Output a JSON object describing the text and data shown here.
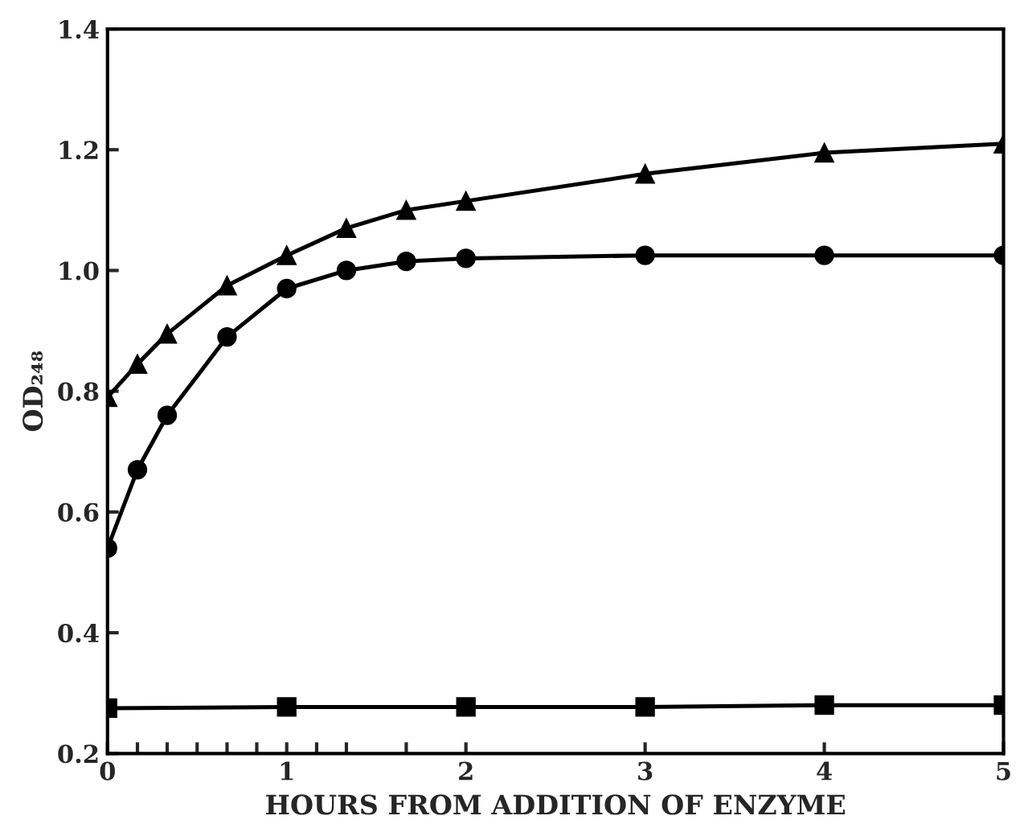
{
  "chart_data": {
    "type": "line",
    "xlabel": "HOURS FROM ADDITION OF ENZYME",
    "ylabel": "OD₂₄₈",
    "series": [
      {
        "color": "#000000",
        "marker": "triangle",
        "x": [
          0,
          0.167,
          0.333,
          0.667,
          1,
          1.333,
          1.667,
          2,
          3,
          4,
          5
        ],
        "values": [
          0.79,
          0.845,
          0.895,
          0.975,
          1.025,
          1.07,
          1.1,
          1.115,
          1.16,
          1.195,
          1.21
        ]
      },
      {
        "color": "#000000",
        "marker": "circle",
        "x": [
          0,
          0.167,
          0.333,
          0.667,
          1,
          1.333,
          1.667,
          2,
          3,
          4,
          5
        ],
        "values": [
          0.54,
          0.67,
          0.76,
          0.89,
          0.97,
          1.0,
          1.015,
          1.02,
          1.025,
          1.025,
          1.025
        ]
      },
      {
        "color": "#000000",
        "marker": "square",
        "x": [
          0,
          1,
          2,
          3,
          4,
          5
        ],
        "values": [
          0.275,
          0.277,
          0.277,
          0.277,
          0.28,
          0.28
        ]
      }
    ],
    "xlim": [
      0,
      5
    ],
    "ylim": [
      0.2,
      1.4
    ],
    "xticks": [
      0,
      {
        "value": 0.167,
        "label": null
      },
      {
        "value": 0.333,
        "label": null
      },
      {
        "value": 0.5,
        "label": null
      },
      {
        "value": 0.667,
        "label": null
      },
      {
        "value": 0.833,
        "label": null
      },
      1,
      {
        "value": 1.167,
        "label": null
      },
      {
        "value": 1.333,
        "label": null
      },
      {
        "value": 1.667,
        "label": null
      },
      2,
      3,
      4,
      5
    ],
    "yticks": [
      0.2,
      0.4,
      0.6,
      0.8,
      {
        "value": 1.0,
        "label": "1.0"
      },
      1.2,
      1.4
    ],
    "grid": false,
    "legend": false,
    "line_style": "solid"
  }
}
